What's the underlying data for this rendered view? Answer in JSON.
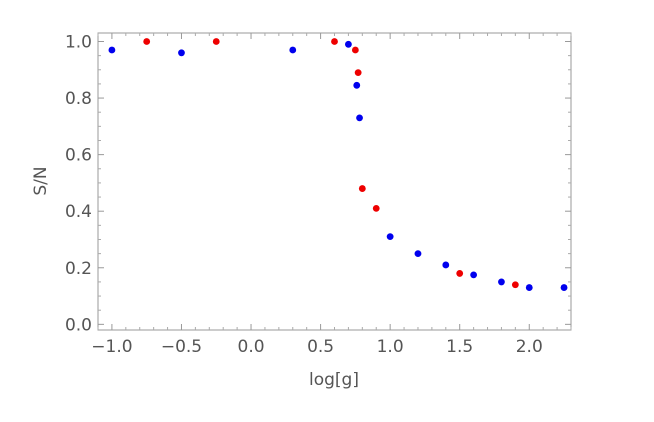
{
  "chart_data": {
    "type": "scatter",
    "xlabel": "log[g]",
    "ylabel": "S/N",
    "xlim": [
      -1.1,
      2.3
    ],
    "ylim": [
      -0.02,
      1.03
    ],
    "grid": false,
    "xticks": [
      -1.0,
      -0.5,
      0.0,
      0.5,
      1.0,
      1.5,
      2.0
    ],
    "xtick_labels": [
      "−1.0",
      "−0.5",
      "0.0",
      "0.5",
      "1.0",
      "1.5",
      "2.0"
    ],
    "yticks": [
      0.0,
      0.2,
      0.4,
      0.6,
      0.8,
      1.0
    ],
    "ytick_labels": [
      "0.0",
      "0.2",
      "0.4",
      "0.6",
      "0.8",
      "1.0"
    ],
    "series": [
      {
        "color": "#0000ee",
        "points": [
          {
            "x": -1.0,
            "y": 0.97
          },
          {
            "x": -0.5,
            "y": 0.96
          },
          {
            "x": 0.3,
            "y": 0.97
          },
          {
            "x": 0.7,
            "y": 0.99
          },
          {
            "x": 0.76,
            "y": 0.845
          },
          {
            "x": 0.78,
            "y": 0.73
          },
          {
            "x": 1.0,
            "y": 0.31
          },
          {
            "x": 1.2,
            "y": 0.25
          },
          {
            "x": 1.4,
            "y": 0.21
          },
          {
            "x": 1.6,
            "y": 0.175
          },
          {
            "x": 1.8,
            "y": 0.15
          },
          {
            "x": 2.0,
            "y": 0.13
          },
          {
            "x": 2.25,
            "y": 0.13
          }
        ]
      },
      {
        "color": "#ee0000",
        "points": [
          {
            "x": -0.75,
            "y": 1.0
          },
          {
            "x": -0.25,
            "y": 1.0
          },
          {
            "x": 0.6,
            "y": 1.0
          },
          {
            "x": 0.75,
            "y": 0.97
          },
          {
            "x": 0.77,
            "y": 0.89
          },
          {
            "x": 0.8,
            "y": 0.48
          },
          {
            "x": 0.9,
            "y": 0.41
          },
          {
            "x": 1.5,
            "y": 0.18
          },
          {
            "x": 1.9,
            "y": 0.14
          }
        ]
      }
    ]
  }
}
